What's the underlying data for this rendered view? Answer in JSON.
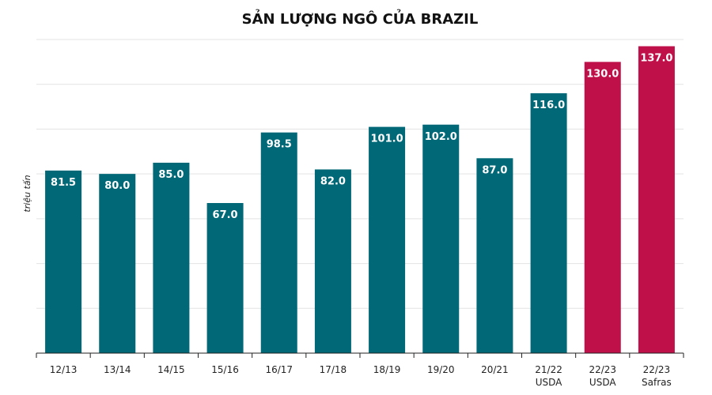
{
  "chart_data": {
    "type": "bar",
    "title": "SẢN LƯỢNG NGÔ CỦA BRAZIL",
    "xlabel": "",
    "ylabel": "triệu tấn",
    "ylim": [
      0,
      140
    ],
    "grid": true,
    "categories": [
      [
        "12/13"
      ],
      [
        "13/14"
      ],
      [
        "14/15"
      ],
      [
        "15/16"
      ],
      [
        "16/17"
      ],
      [
        "17/18"
      ],
      [
        "18/19"
      ],
      [
        "19/20"
      ],
      [
        "20/21"
      ],
      [
        "21/22",
        "USDA"
      ],
      [
        "22/23",
        "USDA"
      ],
      [
        "22/23",
        "Safras"
      ]
    ],
    "values": [
      81.5,
      80.0,
      85.0,
      67.0,
      98.5,
      82.0,
      101.0,
      102.0,
      87.0,
      116.0,
      130.0,
      137.0
    ],
    "value_labels": [
      "81.5",
      "80.0",
      "85.0",
      "67.0",
      "98.5",
      "82.0",
      "101.0",
      "102.0",
      "87.0",
      "116.0",
      "130.0",
      "137.0"
    ],
    "bar_colors": [
      "#006877",
      "#006877",
      "#006877",
      "#006877",
      "#006877",
      "#006877",
      "#006877",
      "#006877",
      "#006877",
      "#006877",
      "#c0104a",
      "#c0104a"
    ]
  }
}
